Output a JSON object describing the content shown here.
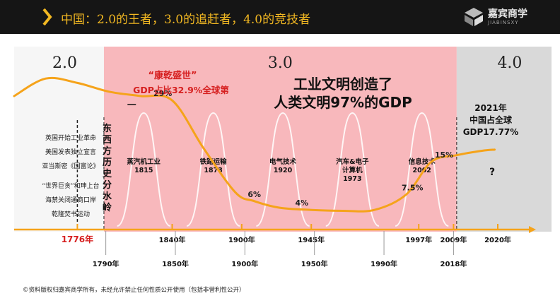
{
  "header": {
    "title": "中国：2.0的王者，3.0的追赶者，4.0的竞技者",
    "logo_cn": "嘉宾商学",
    "logo_en": "JIABINSXY"
  },
  "footer": {
    "copyright": "©资料版权归嘉宾商学所有，未经允许禁止任何性质公开使用（包括非营利性公开）"
  },
  "colors": {
    "accent": "#f5a31a",
    "era2_bg": "#f6f6f6",
    "era3_bg": "#f8b4b8",
    "era4_bg": "#d9d9d9",
    "red_text": "#d62020"
  },
  "chart_data": {
    "type": "line",
    "eras": [
      {
        "label": "2.0",
        "x_start": 0.0,
        "x_end": 1.42
      },
      {
        "label": "3.0",
        "x_start": 1.42,
        "x_end": 7.0
      },
      {
        "label": "4.0",
        "x_start": 7.0,
        "x_end": 8.5
      }
    ],
    "divider_label": "东西方历史分水岭",
    "left_events": [
      "英国开始工业革命",
      "美国发表独立宣言",
      "亚当斯密《国富论》",
      "“世界巨贪”和珅上台",
      "海禁关闭通商口岸",
      "乾隆焚书运动"
    ],
    "waves": [
      {
        "label": "蒸汽机工业",
        "year": "1815",
        "center": 2.05
      },
      {
        "label": "铁路运输",
        "year": "1873",
        "center": 3.15
      },
      {
        "label": "电气技术",
        "year": "1920",
        "center": 4.25
      },
      {
        "label": "汽车&电子计算机",
        "year": "1973",
        "center": 5.35
      },
      {
        "label": "信息技术",
        "year": "2002",
        "center": 6.45
      }
    ],
    "top_axis_ticks": [
      {
        "label": "1776年",
        "x": 1.0,
        "red": true
      },
      {
        "label": "1840年",
        "x": 2.5
      },
      {
        "label": "1900年",
        "x": 3.6
      },
      {
        "label": "1945年",
        "x": 4.7
      },
      {
        "label": "1997年",
        "x": 6.4
      },
      {
        "label": "2009年",
        "x": 6.95
      },
      {
        "label": "2020年",
        "x": 7.65
      }
    ],
    "bottom_axis_ticks": [
      {
        "label": "1790年",
        "x": 1.45
      },
      {
        "label": "1850年",
        "x": 2.55
      },
      {
        "label": "1900年",
        "x": 3.65
      },
      {
        "label": "1950年",
        "x": 4.75
      },
      {
        "label": "1990年",
        "x": 5.85
      },
      {
        "label": "2018年",
        "x": 6.95
      }
    ],
    "series": [
      {
        "values": [
          {
            "x": 0.0,
            "y": 30
          },
          {
            "x": 0.5,
            "y": 34
          },
          {
            "x": 1.0,
            "y": 33
          },
          {
            "x": 1.5,
            "y": 31
          },
          {
            "x": 2.0,
            "y": 30
          },
          {
            "x": 2.5,
            "y": 29
          },
          {
            "x": 3.0,
            "y": 18
          },
          {
            "x": 3.5,
            "y": 8
          },
          {
            "x": 3.8,
            "y": 6
          },
          {
            "x": 4.2,
            "y": 4.5
          },
          {
            "x": 4.7,
            "y": 4
          },
          {
            "x": 5.2,
            "y": 3.8
          },
          {
            "x": 5.7,
            "y": 4
          },
          {
            "x": 6.2,
            "y": 7.5
          },
          {
            "x": 6.6,
            "y": 15
          },
          {
            "x": 7.0,
            "y": 16.5
          },
          {
            "x": 7.4,
            "y": 17.5
          },
          {
            "x": 7.6,
            "y": 17.77
          }
        ]
      }
    ],
    "point_labels": [
      {
        "text": "29%",
        "x": 2.35,
        "y": 29
      },
      {
        "text": "6%",
        "x": 3.8,
        "y": 6
      },
      {
        "text": "4%",
        "x": 4.55,
        "y": 4
      },
      {
        "text": "7.5%",
        "x": 6.3,
        "y": 7.5
      },
      {
        "text": "15%",
        "x": 6.8,
        "y": 15
      }
    ],
    "annotations": {
      "kangqian_1": "“康乾盛世”",
      "kangqian_2": "GDP占比32.9%全球第",
      "kangqian_3": "一",
      "industrial_1": "工业文明创造了",
      "industrial_2": "人类文明97%的GDP",
      "china_1": "2021年",
      "china_2": "中国占全球",
      "china_3": "GDP17.77%",
      "question": "?"
    },
    "ylim": [
      0,
      40
    ],
    "xlim": [
      0,
      8.5
    ]
  }
}
